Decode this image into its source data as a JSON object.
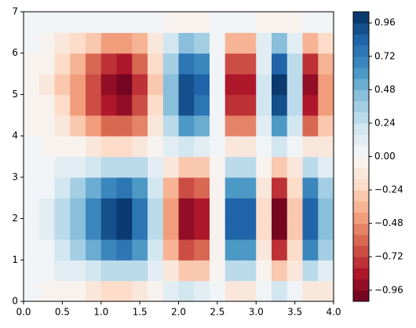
{
  "chart_data": {
    "type": "contour",
    "cmap": [
      "#67001f",
      "#b2182b",
      "#d6604d",
      "#f4a582",
      "#fddbc7",
      "#f7f7f7",
      "#d1e5f0",
      "#92c5de",
      "#4393c3",
      "#2166ac",
      "#053061"
    ],
    "x": [
      0.1,
      0.3,
      0.5,
      0.7,
      0.9,
      1.1,
      1.3,
      1.5,
      1.7,
      1.9,
      2.1,
      2.3,
      2.5,
      2.7,
      2.9,
      3.1,
      3.3,
      3.5,
      3.7,
      3.9
    ],
    "y": [
      0.25,
      0.75,
      1.25,
      1.75,
      2.25,
      2.75,
      3.25,
      3.75,
      4.25,
      4.75,
      5.25,
      5.75,
      6.25,
      6.75
    ],
    "z": [
      [
        0,
        -0.02,
        -0.04,
        -0.08,
        -0.13,
        -0.17,
        -0.18,
        -0.14,
        -0.04,
        0.08,
        0.17,
        0.15,
        0.01,
        -0.15,
        -0.15,
        0.03,
        0.18,
        0.06,
        -0.16,
        -0.09
      ],
      [
        0,
        0.03,
        0.08,
        0.15,
        0.23,
        0.3,
        0.31,
        0.25,
        0.08,
        -0.14,
        -0.3,
        -0.26,
        -0.01,
        0.27,
        0.27,
        -0.06,
        -0.32,
        -0.1,
        0.28,
        0.15
      ],
      [
        0.01,
        0.07,
        0.18,
        0.34,
        0.53,
        0.69,
        0.72,
        0.57,
        0.18,
        -0.33,
        -0.7,
        -0.61,
        -0.02,
        0.62,
        0.62,
        -0.13,
        -0.73,
        -0.23,
        0.66,
        0.35
      ],
      [
        0.01,
        0.09,
        0.24,
        0.46,
        0.7,
        0.91,
        0.96,
        0.76,
        0.24,
        -0.44,
        -0.92,
        -0.81,
        -0.03,
        0.82,
        0.82,
        -0.17,
        -0.97,
        -0.3,
        0.87,
        0.47
      ],
      [
        0.01,
        0.09,
        0.24,
        0.46,
        0.7,
        0.91,
        0.96,
        0.76,
        0.24,
        -0.44,
        -0.92,
        -0.81,
        -0.03,
        0.82,
        0.82,
        -0.17,
        -0.97,
        -0.3,
        0.87,
        0.47
      ],
      [
        0.01,
        0.07,
        0.18,
        0.34,
        0.53,
        0.69,
        0.72,
        0.57,
        0.18,
        -0.33,
        -0.7,
        -0.61,
        -0.02,
        0.62,
        0.62,
        -0.13,
        -0.73,
        -0.23,
        0.66,
        0.35
      ],
      [
        0,
        0.03,
        0.08,
        0.15,
        0.23,
        0.3,
        0.31,
        0.25,
        0.08,
        -0.14,
        -0.3,
        -0.26,
        -0.01,
        0.27,
        0.27,
        -0.06,
        -0.32,
        -0.1,
        0.28,
        0.15
      ],
      [
        0,
        -0.02,
        -0.04,
        -0.08,
        -0.13,
        -0.17,
        -0.18,
        -0.14,
        -0.04,
        0.08,
        0.17,
        0.15,
        0.01,
        -0.15,
        -0.15,
        0.03,
        0.18,
        0.06,
        -0.16,
        -0.09
      ],
      [
        -0.01,
        -0.06,
        -0.16,
        -0.3,
        -0.45,
        -0.59,
        -0.62,
        -0.49,
        -0.16,
        0.28,
        0.6,
        0.53,
        0.02,
        -0.53,
        -0.53,
        0.11,
        0.63,
        0.19,
        -0.57,
        -0.3
      ],
      [
        -0.01,
        -0.08,
        -0.23,
        -0.43,
        -0.67,
        -0.87,
        -0.91,
        -0.72,
        -0.23,
        0.42,
        0.88,
        0.78,
        0.03,
        -0.79,
        -0.79,
        0.17,
        0.92,
        0.29,
        -0.83,
        -0.44
      ],
      [
        -0.01,
        -0.09,
        -0.25,
        -0.47,
        -0.72,
        -0.93,
        -0.98,
        -0.78,
        -0.25,
        0.45,
        0.94,
        0.83,
        0.03,
        -0.84,
        -0.84,
        0.18,
        0.99,
        0.31,
        -0.89,
        -0.48
      ],
      [
        -0.01,
        -0.07,
        -0.21,
        -0.39,
        -0.59,
        -0.77,
        -0.81,
        -0.64,
        -0.21,
        0.37,
        0.78,
        0.69,
        0.02,
        -0.7,
        -0.7,
        0.15,
        0.82,
        0.25,
        -0.74,
        -0.39
      ],
      [
        0,
        -0.04,
        -0.11,
        -0.21,
        -0.32,
        -0.42,
        -0.44,
        -0.35,
        -0.11,
        0.2,
        0.42,
        0.37,
        0.01,
        -0.38,
        -0.38,
        0.08,
        0.45,
        0.14,
        -0.4,
        -0.21
      ],
      [
        0,
        0,
        0.01,
        0.02,
        0.03,
        0.04,
        0.04,
        0.03,
        0.01,
        -0.02,
        -0.04,
        -0.03,
        0,
        0.03,
        0.03,
        -0.01,
        -0.04,
        -0.01,
        0.03,
        0.02
      ]
    ],
    "levels": [
      -1.04,
      -0.96,
      -0.88,
      -0.8,
      -0.72,
      -0.64,
      -0.56,
      -0.48,
      -0.4,
      -0.32,
      -0.24,
      -0.16,
      -0.08,
      0,
      0.08,
      0.16,
      0.24,
      0.32,
      0.4,
      0.48,
      0.56,
      0.64,
      0.72,
      0.8,
      0.88,
      0.96,
      1.04
    ],
    "xlim": [
      0,
      4
    ],
    "ylim": [
      0,
      7
    ],
    "xticks": [
      {
        "value": 0,
        "label": "0.0"
      },
      0.5,
      {
        "value": 1,
        "label": "1.0"
      },
      1.5,
      {
        "value": 2,
        "label": "2.0"
      },
      2.5,
      {
        "value": 3,
        "label": "3.0"
      },
      3.5,
      {
        "value": 4,
        "label": "4.0"
      }
    ],
    "yticks": [
      0,
      1,
      2,
      3,
      4,
      5,
      6,
      7
    ],
    "cbar_ticks": [
      {
        "value": -0.96,
        "label": "−0.96"
      },
      {
        "value": -0.72,
        "label": "−0.72"
      },
      {
        "value": -0.48,
        "label": "−0.48"
      },
      {
        "value": -0.24,
        "label": "−0.24"
      },
      {
        "value": 0,
        "label": "0.00"
      },
      0.24,
      0.48,
      0.72,
      0.96
    ]
  }
}
